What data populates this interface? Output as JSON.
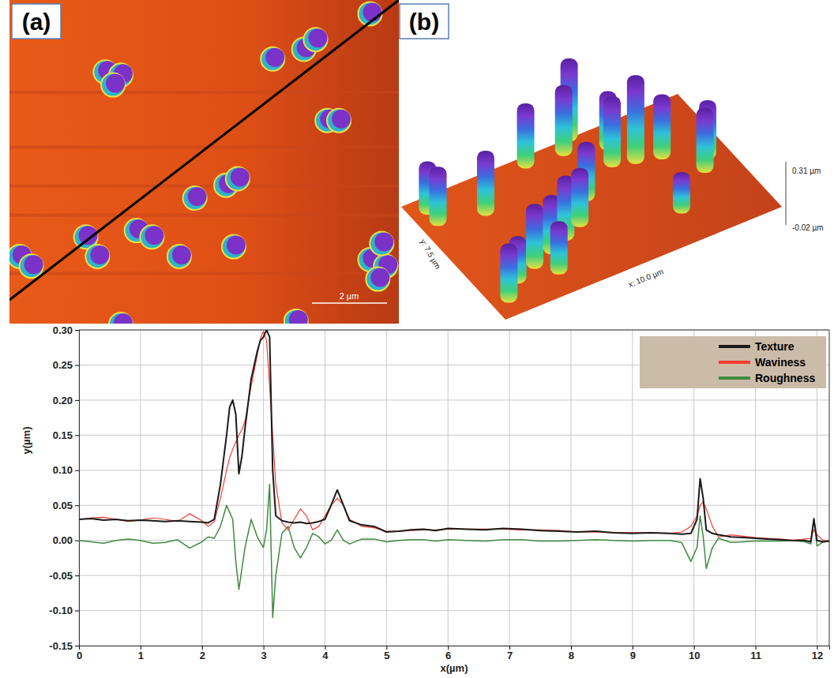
{
  "images": [
    {
      "label": "(a)",
      "scale_bar": "2 µm"
    },
    {
      "label": "(b)",
      "z_max": "0.31 µm",
      "z_min": "-0.02 µm",
      "y_extent": "y: 7.5 µm",
      "x_extent": "x: 10.0 µm"
    }
  ],
  "chart_data": {
    "type": "line",
    "x_label": "x(µm)",
    "y_label": "y(µm)",
    "xlim": [
      0,
      12.2
    ],
    "ylim": [
      -0.15,
      0.3
    ],
    "xticks": [
      0,
      1,
      2,
      3,
      4,
      5,
      6,
      7,
      8,
      9,
      10,
      11,
      12
    ],
    "yticks": [
      {
        "value": 0.3,
        "label": "0.30"
      },
      {
        "value": 0.25,
        "label": "0.25"
      },
      {
        "value": 0.2,
        "label": "0.20"
      },
      {
        "value": 0.15,
        "label": "0.15"
      },
      {
        "value": 0.1,
        "label": "0.10"
      },
      {
        "value": 0.05,
        "label": "0.05"
      },
      {
        "value": 0,
        "label": "0.00"
      },
      {
        "value": -0.05,
        "label": "-0.05"
      },
      {
        "value": -0.1,
        "label": "-0.10"
      },
      {
        "value": -0.15,
        "label": "-0.15"
      }
    ],
    "grid": true,
    "legend": "top-right",
    "x": [
      0,
      0.2,
      0.4,
      0.6,
      0.8,
      1.0,
      1.2,
      1.4,
      1.6,
      1.8,
      2.0,
      2.1,
      2.2,
      2.3,
      2.4,
      2.45,
      2.5,
      2.55,
      2.6,
      2.65,
      2.7,
      2.8,
      2.9,
      2.95,
      3.0,
      3.05,
      3.1,
      3.15,
      3.2,
      3.3,
      3.4,
      3.5,
      3.6,
      3.7,
      3.8,
      3.9,
      4.0,
      4.1,
      4.2,
      4.3,
      4.4,
      4.6,
      4.8,
      5.0,
      5.2,
      5.4,
      5.6,
      5.8,
      6.0,
      6.3,
      6.6,
      6.9,
      7.2,
      7.5,
      7.8,
      8.1,
      8.4,
      8.7,
      9.0,
      9.3,
      9.6,
      9.8,
      9.95,
      10.05,
      10.1,
      10.15,
      10.2,
      10.3,
      10.4,
      10.6,
      10.8,
      11.0,
      11.2,
      11.4,
      11.6,
      11.8,
      11.9,
      11.95,
      12.0,
      12.1,
      12.2
    ],
    "series": [
      {
        "name": "Texture",
        "color": "#1a1a1a",
        "values": [
          0.03,
          0.031,
          0.029,
          0.03,
          0.028,
          0.029,
          0.028,
          0.027,
          0.028,
          0.027,
          0.026,
          0.025,
          0.03,
          0.08,
          0.15,
          0.19,
          0.2,
          0.18,
          0.095,
          0.12,
          0.16,
          0.23,
          0.27,
          0.285,
          0.29,
          0.3,
          0.29,
          0.1,
          0.035,
          0.028,
          0.026,
          0.025,
          0.026,
          0.024,
          0.025,
          0.027,
          0.03,
          0.05,
          0.072,
          0.05,
          0.028,
          0.022,
          0.02,
          0.012,
          0.013,
          0.015,
          0.016,
          0.014,
          0.017,
          0.016,
          0.015,
          0.017,
          0.016,
          0.014,
          0.013,
          0.012,
          0.013,
          0.011,
          0.01,
          0.011,
          0.01,
          0.009,
          0.01,
          0.03,
          0.088,
          0.06,
          0.015,
          0.01,
          0.008,
          0.005,
          0.004,
          0.003,
          0.002,
          0.001,
          0.0,
          0.0,
          -0.002,
          0.03,
          0.0,
          -0.002,
          -0.001
        ]
      },
      {
        "name": "Waviness",
        "color": "#ff3b30",
        "values": [
          0.03,
          0.032,
          0.033,
          0.03,
          0.027,
          0.029,
          0.032,
          0.03,
          0.027,
          0.038,
          0.028,
          0.02,
          0.027,
          0.06,
          0.1,
          0.118,
          0.13,
          0.14,
          0.15,
          0.158,
          0.17,
          0.22,
          0.265,
          0.288,
          0.298,
          0.285,
          0.22,
          0.15,
          0.08,
          0.025,
          0.015,
          0.03,
          0.045,
          0.035,
          0.015,
          0.02,
          0.035,
          0.05,
          0.06,
          0.05,
          0.03,
          0.02,
          0.018,
          0.013,
          0.013,
          0.014,
          0.015,
          0.015,
          0.016,
          0.016,
          0.016,
          0.016,
          0.015,
          0.015,
          0.014,
          0.012,
          0.012,
          0.011,
          0.011,
          0.011,
          0.01,
          0.012,
          0.02,
          0.035,
          0.05,
          0.055,
          0.045,
          0.02,
          0.005,
          0.008,
          0.006,
          0.004,
          0.003,
          0.002,
          0.0,
          0.002,
          0.003,
          0.015,
          0.008,
          0.0,
          -0.001
        ]
      },
      {
        "name": "Roughness",
        "color": "#3f8a3f",
        "values": [
          0.0,
          -0.002,
          -0.004,
          0.0,
          0.002,
          0.0,
          -0.004,
          -0.003,
          0.001,
          -0.011,
          -0.002,
          0.005,
          0.003,
          0.02,
          0.05,
          0.04,
          0.03,
          -0.03,
          -0.07,
          -0.04,
          -0.01,
          0.03,
          0.005,
          -0.003,
          -0.01,
          0.015,
          0.08,
          -0.11,
          -0.05,
          0.01,
          0.02,
          -0.01,
          -0.025,
          -0.01,
          0.01,
          0.005,
          -0.005,
          0.0,
          0.015,
          0.0,
          -0.005,
          0.002,
          0.002,
          -0.002,
          0.0,
          0.001,
          0.001,
          -0.001,
          0.001,
          0.0,
          -0.001,
          0.001,
          0.001,
          -0.001,
          -0.001,
          0.0,
          0.001,
          0.0,
          -0.001,
          0.0,
          0.0,
          -0.003,
          -0.03,
          -0.01,
          0.035,
          0.005,
          -0.04,
          -0.01,
          0.003,
          -0.003,
          -0.002,
          -0.001,
          -0.001,
          -0.001,
          0.0,
          -0.002,
          -0.005,
          0.032,
          -0.008,
          -0.002,
          0.0
        ]
      }
    ]
  }
}
